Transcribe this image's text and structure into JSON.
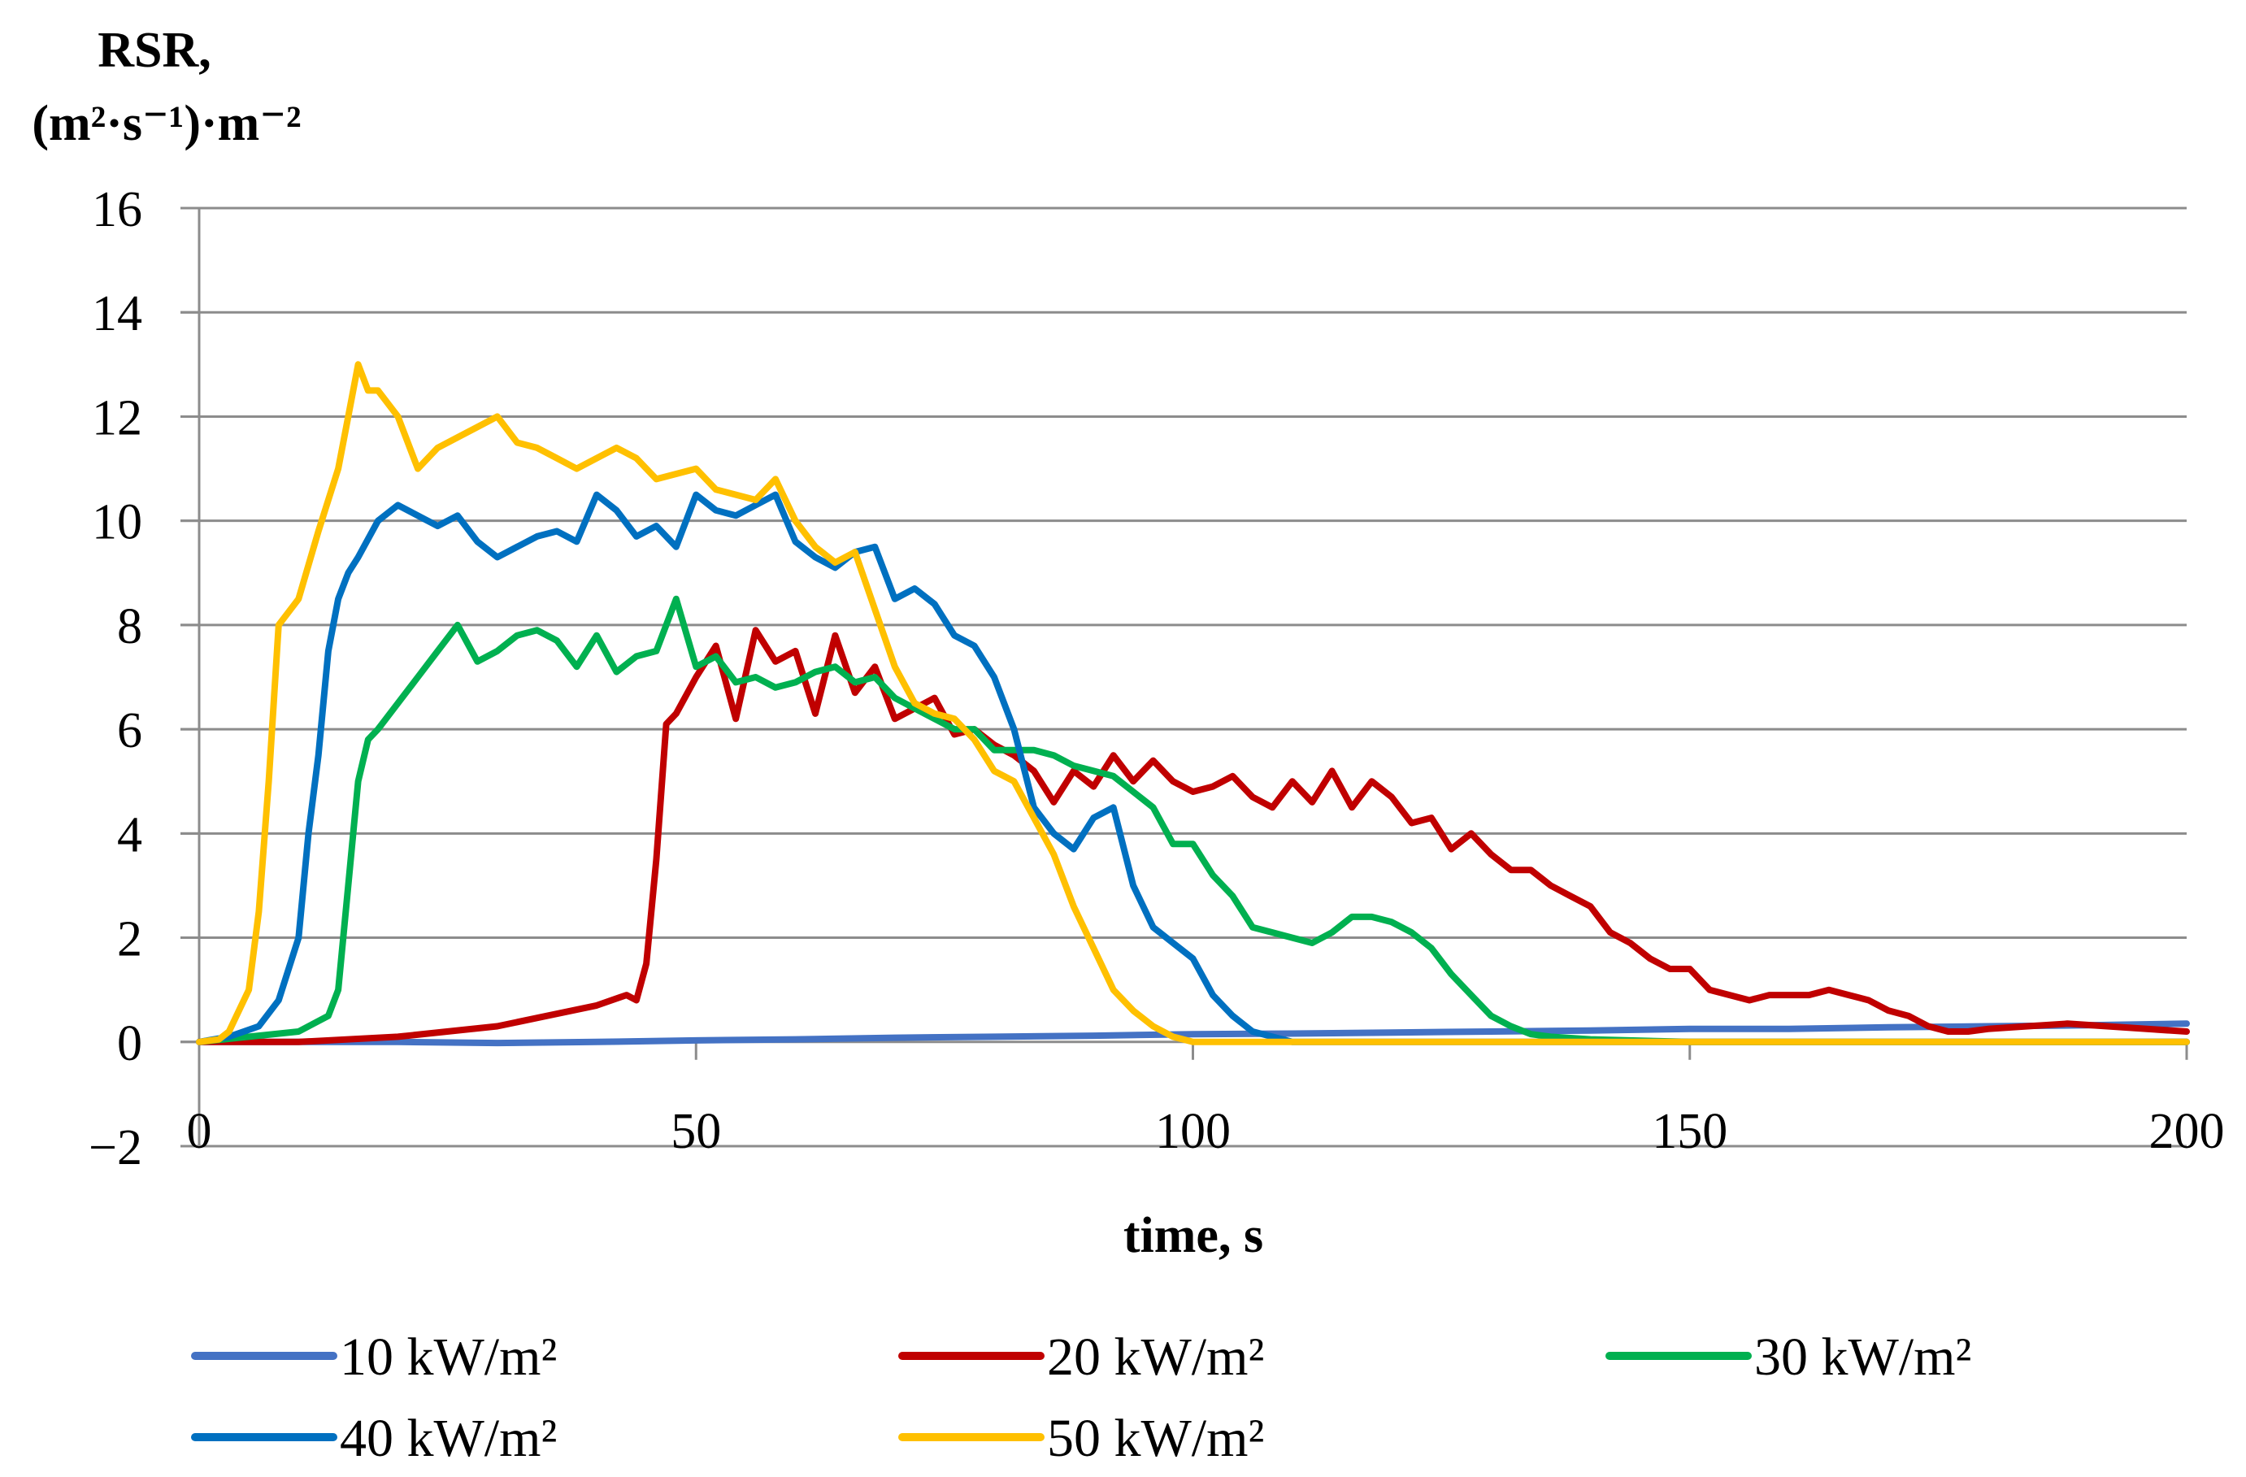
{
  "chart_data": {
    "type": "line",
    "title": "",
    "ylabel_lines": [
      "RSR,",
      "(m²·s⁻¹)·m⁻²"
    ],
    "xlabel": "time, s",
    "xlim": [
      0,
      200
    ],
    "ylim": [
      -2,
      16
    ],
    "xticks": [
      0,
      50,
      100,
      150,
      200
    ],
    "xtick_labels": [
      "0",
      "50",
      "100",
      "150",
      "200"
    ],
    "yticks": [
      -2,
      0,
      2,
      4,
      6,
      8,
      10,
      12,
      14,
      16
    ],
    "ytick_labels": [
      "−2",
      "0",
      "2",
      "4",
      "6",
      "8",
      "10",
      "12",
      "14",
      "16"
    ],
    "grid": true,
    "legend_position": "bottom",
    "series": [
      {
        "name": "10 kW/m²",
        "color": "#4472C4",
        "x": [
          0,
          10,
          20,
          30,
          40,
          50,
          60,
          70,
          80,
          90,
          100,
          110,
          120,
          130,
          140,
          150,
          160,
          170,
          180,
          190,
          200
        ],
        "y": [
          0,
          0,
          0,
          -0.02,
          0,
          0.03,
          0.05,
          0.08,
          0.1,
          0.12,
          0.15,
          0.16,
          0.18,
          0.2,
          0.22,
          0.25,
          0.25,
          0.28,
          0.3,
          0.32,
          0.35
        ]
      },
      {
        "name": "20 kW/m²",
        "color": "#C00000",
        "x": [
          0,
          10,
          20,
          30,
          35,
          40,
          43,
          44,
          45,
          46,
          47,
          48,
          50,
          52,
          54,
          56,
          58,
          60,
          62,
          64,
          66,
          68,
          70,
          72,
          74,
          76,
          78,
          80,
          82,
          84,
          86,
          88,
          90,
          92,
          94,
          96,
          98,
          100,
          102,
          104,
          106,
          108,
          110,
          112,
          114,
          116,
          118,
          120,
          122,
          124,
          126,
          128,
          130,
          132,
          134,
          136,
          138,
          140,
          142,
          144,
          146,
          148,
          150,
          152,
          154,
          156,
          158,
          160,
          162,
          164,
          166,
          168,
          170,
          172,
          174,
          176,
          178,
          180,
          184,
          188,
          192,
          196,
          200
        ],
        "y": [
          0,
          0,
          0.1,
          0.3,
          0.5,
          0.7,
          0.9,
          0.8,
          1.5,
          3.5,
          6.1,
          6.3,
          7.0,
          7.6,
          6.2,
          7.9,
          7.3,
          7.5,
          6.3,
          7.8,
          6.7,
          7.2,
          6.2,
          6.4,
          6.6,
          5.9,
          6.0,
          5.7,
          5.5,
          5.2,
          4.6,
          5.2,
          4.9,
          5.5,
          5.0,
          5.4,
          5.0,
          4.8,
          4.9,
          5.1,
          4.7,
          4.5,
          5.0,
          4.6,
          5.2,
          4.5,
          5.0,
          4.7,
          4.2,
          4.3,
          3.7,
          4.0,
          3.6,
          3.3,
          3.3,
          3.0,
          2.8,
          2.6,
          2.1,
          1.9,
          1.6,
          1.4,
          1.4,
          1.0,
          0.9,
          0.8,
          0.9,
          0.9,
          0.9,
          1.0,
          0.9,
          0.8,
          0.6,
          0.5,
          0.3,
          0.2,
          0.2,
          0.25,
          0.3,
          0.35,
          0.3,
          0.25,
          0.2
        ]
      },
      {
        "name": "30 kW/m²",
        "color": "#00B050",
        "x": [
          0,
          5,
          10,
          13,
          14,
          15,
          16,
          17,
          18,
          20,
          22,
          24,
          26,
          28,
          30,
          32,
          34,
          36,
          38,
          40,
          42,
          44,
          46,
          48,
          50,
          52,
          54,
          56,
          58,
          60,
          62,
          64,
          66,
          68,
          70,
          72,
          74,
          76,
          78,
          80,
          82,
          84,
          86,
          88,
          90,
          92,
          94,
          96,
          98,
          100,
          102,
          104,
          106,
          108,
          110,
          112,
          114,
          116,
          118,
          120,
          122,
          124,
          126,
          128,
          130,
          132,
          134,
          136,
          140,
          150,
          160,
          170,
          180,
          190,
          200
        ],
        "y": [
          0,
          0.1,
          0.2,
          0.5,
          1.0,
          3.0,
          5.0,
          5.8,
          6.0,
          6.5,
          7.0,
          7.5,
          8.0,
          7.3,
          7.5,
          7.8,
          7.9,
          7.7,
          7.2,
          7.8,
          7.1,
          7.4,
          7.5,
          8.5,
          7.2,
          7.4,
          6.9,
          7.0,
          6.8,
          6.9,
          7.1,
          7.2,
          6.9,
          7.0,
          6.6,
          6.4,
          6.2,
          6.0,
          6.0,
          5.6,
          5.6,
          5.6,
          5.5,
          5.3,
          5.2,
          5.1,
          4.8,
          4.5,
          3.8,
          3.8,
          3.2,
          2.8,
          2.2,
          2.1,
          2.0,
          1.9,
          2.1,
          2.4,
          2.4,
          2.3,
          2.1,
          1.8,
          1.3,
          0.9,
          0.5,
          0.3,
          0.15,
          0.1,
          0.05,
          0.0,
          0.0,
          0.0,
          0.0,
          0.0,
          0.0
        ]
      },
      {
        "name": "40 kW/m²",
        "color": "#0070C0",
        "x": [
          0,
          3,
          6,
          8,
          10,
          11,
          12,
          13,
          14,
          15,
          16,
          18,
          20,
          22,
          24,
          26,
          28,
          30,
          32,
          34,
          36,
          38,
          40,
          42,
          44,
          46,
          48,
          50,
          52,
          54,
          56,
          58,
          60,
          62,
          64,
          66,
          68,
          70,
          72,
          74,
          76,
          78,
          80,
          82,
          84,
          86,
          88,
          90,
          92,
          94,
          96,
          98,
          100,
          102,
          104,
          106,
          108,
          110,
          120,
          130,
          140,
          150,
          160,
          170,
          180,
          190,
          200
        ],
        "y": [
          0,
          0.1,
          0.3,
          0.8,
          2.0,
          4.0,
          5.5,
          7.5,
          8.5,
          9.0,
          9.3,
          10.0,
          10.3,
          10.1,
          9.9,
          10.1,
          9.6,
          9.3,
          9.5,
          9.7,
          9.8,
          9.6,
          10.5,
          10.2,
          9.7,
          9.9,
          9.5,
          10.5,
          10.2,
          10.1,
          10.3,
          10.5,
          9.6,
          9.3,
          9.1,
          9.4,
          9.5,
          8.5,
          8.7,
          8.4,
          7.8,
          7.6,
          7.0,
          6.0,
          4.5,
          4.0,
          3.7,
          4.3,
          4.5,
          3.0,
          2.2,
          1.9,
          1.6,
          0.9,
          0.5,
          0.2,
          0.1,
          0.0,
          0.0,
          0.0,
          0.0,
          0.0,
          0.0,
          0.0,
          0.0,
          0.0,
          0.0
        ]
      },
      {
        "name": "50 kW/m²",
        "color": "#FFC000",
        "x": [
          0,
          2,
          3,
          5,
          6,
          7,
          8,
          10,
          12,
          14,
          15,
          16,
          17,
          18,
          20,
          22,
          24,
          26,
          28,
          30,
          32,
          34,
          36,
          38,
          40,
          42,
          44,
          46,
          48,
          50,
          52,
          54,
          56,
          58,
          60,
          62,
          64,
          66,
          68,
          70,
          72,
          74,
          76,
          78,
          80,
          82,
          84,
          86,
          88,
          90,
          92,
          94,
          96,
          98,
          100,
          102,
          104,
          106,
          108,
          110,
          120,
          130,
          140,
          150,
          160,
          170,
          180,
          190,
          200
        ],
        "y": [
          0,
          0.05,
          0.2,
          1.0,
          2.5,
          5.0,
          8.0,
          8.5,
          9.8,
          11.0,
          12.0,
          13.0,
          12.5,
          12.5,
          12.0,
          11.0,
          11.4,
          11.6,
          11.8,
          12.0,
          11.5,
          11.4,
          11.2,
          11.0,
          11.2,
          11.4,
          11.2,
          10.8,
          10.9,
          11.0,
          10.6,
          10.5,
          10.4,
          10.8,
          10.0,
          9.5,
          9.2,
          9.4,
          8.3,
          7.2,
          6.5,
          6.3,
          6.2,
          5.8,
          5.2,
          5.0,
          4.3,
          3.6,
          2.6,
          1.8,
          1.0,
          0.6,
          0.3,
          0.1,
          0.0,
          0.0,
          0.0,
          0.0,
          0.0,
          0.0,
          0.0,
          0.0,
          0.0,
          0.0,
          0.0,
          0.0,
          0.0,
          0.0,
          0.0
        ]
      }
    ]
  }
}
